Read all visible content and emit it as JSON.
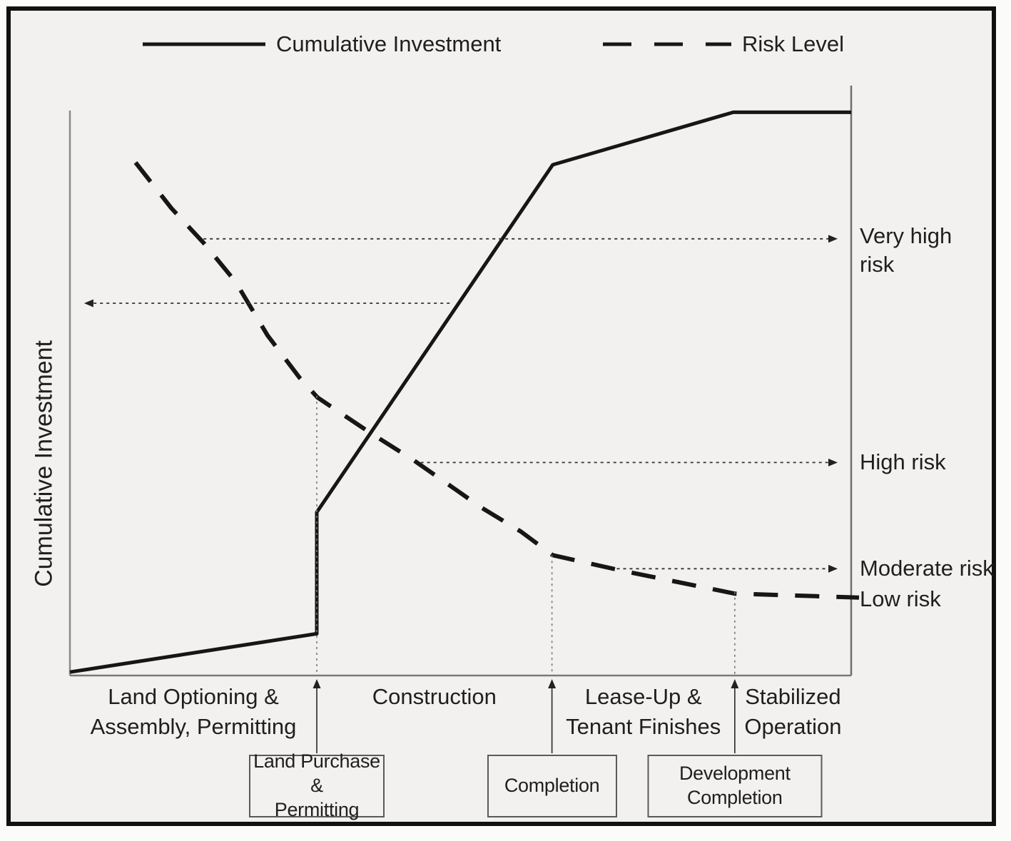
{
  "colors": {
    "background": "#f2f1ef",
    "line": "#161616",
    "guide": "#3a3a3a",
    "axis": "#6e6e6e",
    "text": "#1f1f1f"
  },
  "legend": {
    "items": [
      {
        "label": "Cumulative Investment",
        "style": "solid"
      },
      {
        "label": "Risk Level",
        "style": "dashed"
      }
    ]
  },
  "y_axis_label": "Cumulative Investment",
  "chart_data": {
    "type": "line",
    "title": "",
    "xlabel": "",
    "ylabel": "Cumulative Investment",
    "axes_note": "qualitative axes without numeric ticks; values normalized 0-100",
    "x_range": [
      0,
      100
    ],
    "y_range": [
      0,
      100
    ],
    "grid": false,
    "legend_position": "top",
    "series": [
      {
        "name": "Cumulative Investment",
        "style": "solid",
        "points": [
          [
            0,
            0.6
          ],
          [
            31.6,
            7.4
          ],
          [
            31.6,
            28.9
          ],
          [
            61.8,
            90.4
          ],
          [
            84.9,
            99.7
          ],
          [
            100,
            99.7
          ]
        ]
      },
      {
        "name": "Risk Level",
        "style": "dashed",
        "points": [
          [
            8.4,
            90.8
          ],
          [
            13,
            82.7
          ],
          [
            17.1,
            76.6
          ],
          [
            21.2,
            69.7
          ],
          [
            25.3,
            60.2
          ],
          [
            29.4,
            52.7
          ],
          [
            31.7,
            49.2
          ],
          [
            38.5,
            42.9
          ],
          [
            44,
            38.1
          ],
          [
            52.7,
            29.7
          ],
          [
            57.7,
            25.5
          ],
          [
            61.8,
            21.3
          ],
          [
            70.5,
            18.6
          ],
          [
            85.1,
            14.5
          ],
          [
            101,
            13.8
          ]
        ]
      }
    ],
    "phases": [
      {
        "label": "Land Optioning &\nAssembly, Permitting",
        "x_start": 0,
        "x_end": 31.6
      },
      {
        "label": "Construction",
        "x_start": 31.6,
        "x_end": 61.7
      },
      {
        "label": "Lease-Up &\nTenant Finishes",
        "x_start": 61.7,
        "x_end": 85.1
      },
      {
        "label": "Stabilized\nOperation",
        "x_start": 85.1,
        "x_end": 100
      }
    ],
    "milestones": [
      {
        "label": "Land Purchase &\nPermitting",
        "x": 31.6,
        "guide_top_y": 49.5
      },
      {
        "label": "Completion",
        "x": 61.7,
        "guide_top_y": 21.3
      },
      {
        "label": "Development\nCompletion",
        "x": 85.1,
        "guide_top_y": 14.8
      }
    ],
    "risk_levels": [
      {
        "label": "Very high\nrisk",
        "y": 77.3,
        "arrow_from_x": 17.1,
        "arrow": "right"
      },
      {
        "label": "High risk",
        "y": 37.7,
        "arrow_from_x": 44.9,
        "arrow": "right"
      },
      {
        "label": "Moderate risk",
        "y": 18.9,
        "arrow_from_x": 70,
        "arrow": "right"
      },
      {
        "label": "Low risk",
        "y": 13.5,
        "arrow": "none"
      }
    ],
    "investment_readout_arrow": {
      "y": 65.9,
      "from_x": 48.6,
      "to_x": 2,
      "arrow": "left"
    }
  }
}
